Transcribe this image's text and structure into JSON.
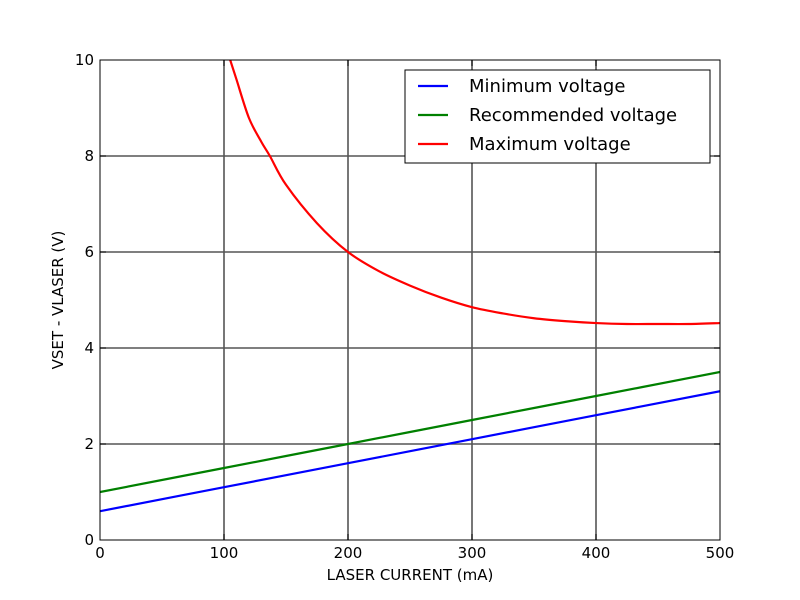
{
  "chart_data": {
    "type": "line",
    "title": "",
    "xlabel": "LASER CURRENT (mA)",
    "ylabel": "VSET - VLASER (V)",
    "xlim": [
      0,
      500
    ],
    "ylim": [
      0,
      10
    ],
    "xticks": [
      "0",
      "100",
      "200",
      "300",
      "400",
      "500"
    ],
    "yticks": [
      "0",
      "2",
      "4",
      "6",
      "8",
      "10"
    ],
    "grid": true,
    "legend_position": "top-right",
    "series": [
      {
        "name": "Minimum voltage",
        "color": "#0000ff",
        "x": [
          0,
          100,
          200,
          300,
          400,
          500
        ],
        "y": [
          0.6,
          1.1,
          1.6,
          2.1,
          2.6,
          3.1
        ]
      },
      {
        "name": "Recommended voltage",
        "color": "#008000",
        "x": [
          0,
          100,
          200,
          300,
          400,
          500
        ],
        "y": [
          1.0,
          1.5,
          2.0,
          2.5,
          3.0,
          3.5
        ]
      },
      {
        "name": "Maximum voltage",
        "color": "#ff0000",
        "x": [
          105,
          110,
          120,
          130,
          137,
          150,
          175,
          200,
          225,
          250,
          275,
          300,
          325,
          350,
          375,
          400,
          425,
          450,
          475,
          500
        ],
        "y": [
          10.0,
          9.6,
          8.8,
          8.3,
          8.0,
          7.4,
          6.6,
          6.0,
          5.6,
          5.3,
          5.05,
          4.85,
          4.72,
          4.62,
          4.56,
          4.52,
          4.5,
          4.5,
          4.5,
          4.52
        ]
      }
    ]
  }
}
